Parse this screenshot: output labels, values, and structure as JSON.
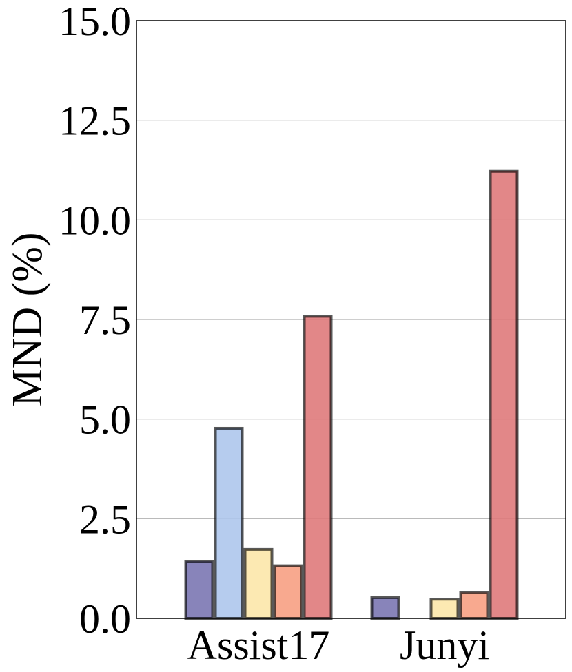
{
  "chart_data": {
    "type": "bar",
    "title": "",
    "xlabel": "",
    "ylabel": "MND (%)",
    "ylim": [
      0,
      15
    ],
    "yticks": [
      "0.0",
      "2.5",
      "5.0",
      "7.5",
      "10.0",
      "12.5",
      "15.0"
    ],
    "categories": [
      "Assist17",
      "Junyi"
    ],
    "grid": "y",
    "legend": "none",
    "series": [
      {
        "color": "#7b77b3",
        "values": [
          1.43,
          0.52
        ]
      },
      {
        "color": "#aec6ec",
        "values": [
          4.77,
          0.0
        ]
      },
      {
        "color": "#fce7aa",
        "values": [
          1.73,
          0.48
        ]
      },
      {
        "color": "#f7a083",
        "values": [
          1.32,
          0.65
        ]
      },
      {
        "color": "#df7a7b",
        "values": [
          7.58,
          11.22
        ]
      }
    ]
  }
}
